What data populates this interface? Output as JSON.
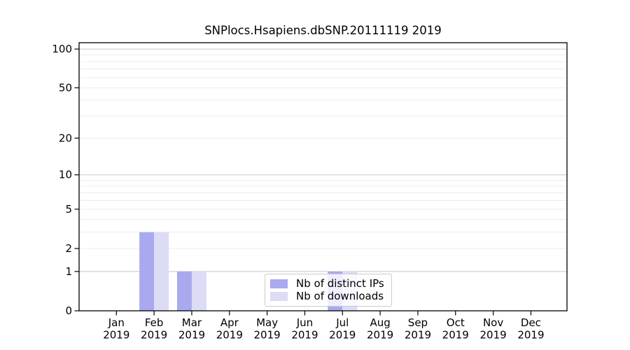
{
  "chart_data": {
    "type": "bar",
    "title": "SNPlocs.Hsapiens.dbSNP.20111119 2019",
    "categories": [
      "Jan",
      "Feb",
      "Mar",
      "Apr",
      "May",
      "Jun",
      "Jul",
      "Aug",
      "Sep",
      "Oct",
      "Nov",
      "Dec"
    ],
    "category_year": "2019",
    "series": [
      {
        "name": "Nb of distinct IPs",
        "color": "#a9a9ef",
        "values": [
          0,
          3,
          1,
          0,
          0,
          0,
          1,
          0,
          0,
          0,
          0,
          0
        ]
      },
      {
        "name": "Nb of downloads",
        "color": "#dcdcf7",
        "values": [
          0,
          3,
          1,
          0,
          0,
          0,
          1,
          0,
          0,
          0,
          0,
          0
        ]
      }
    ],
    "yscale": "log10(1+x)",
    "ylim": [
      0,
      112
    ],
    "ytick_labels": [
      "0",
      "1",
      "2",
      "5",
      "10",
      "20",
      "50",
      "100"
    ],
    "ytick_values": [
      0,
      1,
      2,
      5,
      10,
      20,
      50,
      100
    ],
    "grid_major_values": [
      1,
      10,
      100
    ],
    "grid_minor_values": [
      2,
      3,
      4,
      5,
      6,
      7,
      8,
      9,
      20,
      30,
      40,
      50,
      60,
      70,
      80,
      90
    ],
    "legend_position": "lower center-right, overlapping Jul bars",
    "grid_on": true,
    "colors": {
      "grid_major": "#c8c8c8",
      "grid_minor": "#ececec",
      "spine": "#000000",
      "text": "#000000",
      "legend_border": "#cccccc"
    }
  }
}
